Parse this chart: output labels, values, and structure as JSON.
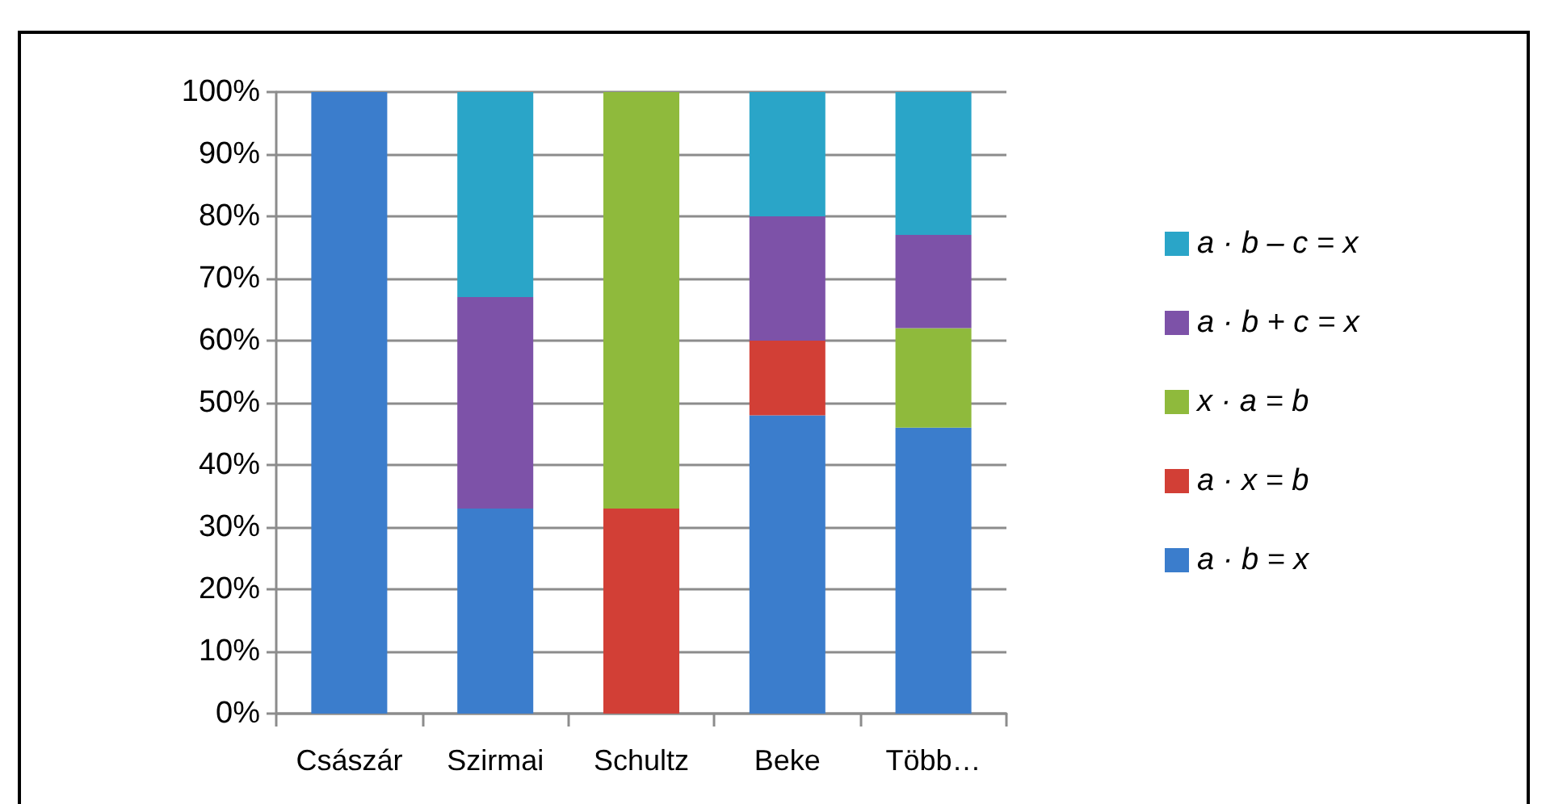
{
  "chart_data": {
    "type": "bar",
    "stacked": true,
    "categories": [
      "Császár",
      "Szirmai",
      "Schultz",
      "Beke",
      "Több…"
    ],
    "series": [
      {
        "name": "a · b = x",
        "color": "#3b7dcc",
        "values": [
          100,
          33,
          0,
          48,
          46
        ]
      },
      {
        "name": "a · x = b",
        "color": "#d23f36",
        "values": [
          0,
          0,
          33,
          12,
          0
        ]
      },
      {
        "name": "x · a = b",
        "color": "#8fba3c",
        "values": [
          0,
          0,
          67,
          0,
          16
        ]
      },
      {
        "name": "a · b + c = x",
        "color": "#7d52a8",
        "values": [
          0,
          34,
          0,
          20,
          15
        ]
      },
      {
        "name": "a · b – c = x",
        "color": "#2aa5c8",
        "values": [
          0,
          33,
          0,
          20,
          23
        ]
      }
    ],
    "ylim": [
      0,
      100
    ],
    "yticks": [
      {
        "value": 0,
        "label": "0%"
      },
      {
        "value": 10,
        "label": "10%"
      },
      {
        "value": 20,
        "label": "20%"
      },
      {
        "value": 30,
        "label": "30%"
      },
      {
        "value": 40,
        "label": "40%"
      },
      {
        "value": 50,
        "label": "50%"
      },
      {
        "value": 60,
        "label": "60%"
      },
      {
        "value": 70,
        "label": "70%"
      },
      {
        "value": 80,
        "label": "80%"
      },
      {
        "value": 90,
        "label": "90%"
      },
      {
        "value": 100,
        "label": "100%"
      }
    ],
    "grid": "y",
    "legend": "right"
  }
}
